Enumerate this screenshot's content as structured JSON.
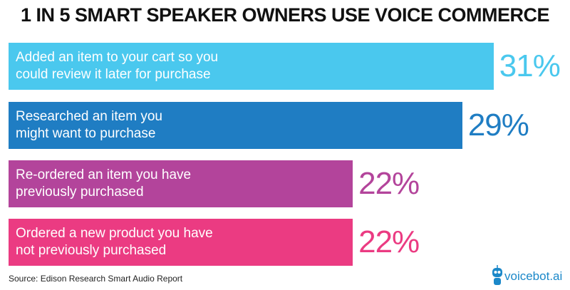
{
  "chart_data": {
    "type": "hbar",
    "title": "1 IN 5 SMART SPEAKER OWNERS USE VOICE COMMERCE",
    "categories": [
      "Added an item to your cart so you\ncould review it later for purchase",
      "Researched an item you\nmight want to purchase",
      "Re-ordered an item you have\npreviously purchased",
      "Ordered a new product you have\nnot previously purchased"
    ],
    "values": [
      31,
      29,
      22,
      22
    ],
    "value_labels": [
      "31%",
      "29%",
      "22%",
      "22%"
    ],
    "colors": [
      "#4ac8ee",
      "#1f7dc3",
      "#b3449b",
      "#eb3b82"
    ],
    "source": "Source: Edison Research Smart Audio Report",
    "logo": "voicebot.ai"
  }
}
